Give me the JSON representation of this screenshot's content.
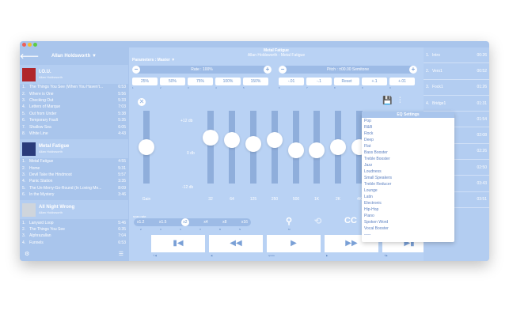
{
  "sidebar": {
    "artist": "Allan Holdsworth ▼",
    "albums": [
      {
        "title": "I.O.U.",
        "artist": "Allan Holdsworth",
        "art_color": "#b0262b",
        "tracks": [
          {
            "num": "1.",
            "title": "The Things You See (When You Haven't...",
            "dur": "6:53"
          },
          {
            "num": "2.",
            "title": "Where is One",
            "dur": "5:56"
          },
          {
            "num": "3.",
            "title": "Checking Out",
            "dur": "5:33"
          },
          {
            "num": "4.",
            "title": "Letters of Marque",
            "dur": "7:03"
          },
          {
            "num": "5.",
            "title": "Out from Under",
            "dur": "5:38"
          },
          {
            "num": "6.",
            "title": "Temporary Fault",
            "dur": "5:35"
          },
          {
            "num": "7.",
            "title": "Shallow Sea",
            "dur": "6:05"
          },
          {
            "num": "8.",
            "title": "White Line",
            "dur": "4:43"
          }
        ]
      },
      {
        "title": "Metal Fatigue",
        "artist": "Allan Holdsworth",
        "art_color": "#2a3b7a",
        "tracks": [
          {
            "num": "1.",
            "title": "Metal Fatigue",
            "dur": "4:55"
          },
          {
            "num": "2.",
            "title": "Home",
            "dur": "5:31"
          },
          {
            "num": "3.",
            "title": "Devil Take the Hindmost",
            "dur": "5:57"
          },
          {
            "num": "4.",
            "title": "Panic Station",
            "dur": "3:35"
          },
          {
            "num": "5.",
            "title": "The Un-Merry-Go-Round (In Loving Me...",
            "dur": "8:09"
          },
          {
            "num": "6.",
            "title": "In the Mystery",
            "dur": "3:46"
          }
        ]
      },
      {
        "title": "All Night Wrong",
        "artist": "Allan Holdsworth",
        "art_color": "#cfd5dc",
        "tracks": [
          {
            "num": "1.",
            "title": "Lanyard Loop",
            "dur": "5:46"
          },
          {
            "num": "2.",
            "title": "The Things You See",
            "dur": "6:35"
          },
          {
            "num": "3.",
            "title": "Alphrazallan",
            "dur": "7:04"
          },
          {
            "num": "4.",
            "title": "Funnels",
            "dur": "6:53"
          }
        ]
      }
    ]
  },
  "now_playing": {
    "title": "Metal Fatigue",
    "subtitle": "Allan Holdsworth - Metal Fatigue"
  },
  "params": {
    "label": "Parameters : Master ▼",
    "rate": "Rate : 100%",
    "pitch": "Pitch : ±00.00 Semitone"
  },
  "rate_presets": [
    "25%",
    "50%",
    "75%",
    "100%",
    "150%"
  ],
  "rate_indices": [
    "1",
    "2",
    "3",
    "4",
    "5"
  ],
  "pitch_presets": [
    "-.01",
    "-.1",
    "Reset",
    "+.1",
    "+.01"
  ],
  "pitch_indices": [
    "6",
    "7",
    "8",
    "9",
    "0"
  ],
  "eq": {
    "db_labels": {
      "top": "+12 db",
      "mid": "0 db",
      "bottom": "-12 db"
    },
    "bands": [
      {
        "label": "Gain",
        "level": 0.5
      },
      {
        "label": "32",
        "level": 0.66
      },
      {
        "label": "64",
        "level": 0.62
      },
      {
        "label": "125",
        "level": 0.56
      },
      {
        "label": "250",
        "level": 0.63
      },
      {
        "label": "500",
        "level": 0.45
      },
      {
        "label": "1K",
        "level": 0.45
      },
      {
        "label": "2K",
        "level": 0.5
      },
      {
        "label": "4K",
        "level": 0.5
      }
    ]
  },
  "scan": {
    "label": "scan rate",
    "options": [
      "x1.2",
      "x1.5",
      "x2",
      "x4",
      "x8",
      "x16"
    ],
    "active": "x2",
    "indices": [
      "Z",
      "X",
      "C",
      "V",
      "B",
      "N"
    ]
  },
  "controls": {
    "cc": "CC",
    "extra": "E",
    "m_key": "M"
  },
  "transport": {
    "prev": "▮◀",
    "rewind": "◀◀",
    "play": "▶",
    "forward": "▶▶",
    "next": "▶▮",
    "keys": [
      "⇧◀",
      "◀",
      "space",
      "▶",
      "⇧▶"
    ]
  },
  "eq_settings": {
    "title": "EQ Settings",
    "items": [
      "Pop",
      "R&B",
      "Rock",
      "Deep",
      "Flat",
      "Bass Booster",
      "Treble Booster",
      "Jazz",
      "Loudness",
      "Small Speakers",
      "Treble Reducer",
      "Lounge",
      "Latin",
      "Electronic",
      "Hip-Hop",
      "Piano",
      "Spoken Word",
      "Vocal Booster",
      "-----"
    ]
  },
  "playlist": [
    {
      "num": "1.",
      "title": "Intro",
      "time": "00:26"
    },
    {
      "num": "2.",
      "title": "Vers1",
      "time": "00:52"
    },
    {
      "num": "3.",
      "title": "Fock1",
      "time": "01:26"
    },
    {
      "num": "4.",
      "title": "Bridge1",
      "time": "01:31"
    },
    {
      "num": "",
      "title": "",
      "time": "01:54"
    },
    {
      "num": "",
      "title": "",
      "time": "02:08"
    },
    {
      "num": "",
      "title": "",
      "time": "02:26"
    },
    {
      "num": "",
      "title": "",
      "time": "02:50"
    },
    {
      "num": "",
      "title": "",
      "time": "03:43"
    },
    {
      "num": "",
      "title": "",
      "time": "03:51"
    }
  ],
  "window_dots": [
    "#ee5f57",
    "#f5bd2f",
    "#5ccc45"
  ]
}
